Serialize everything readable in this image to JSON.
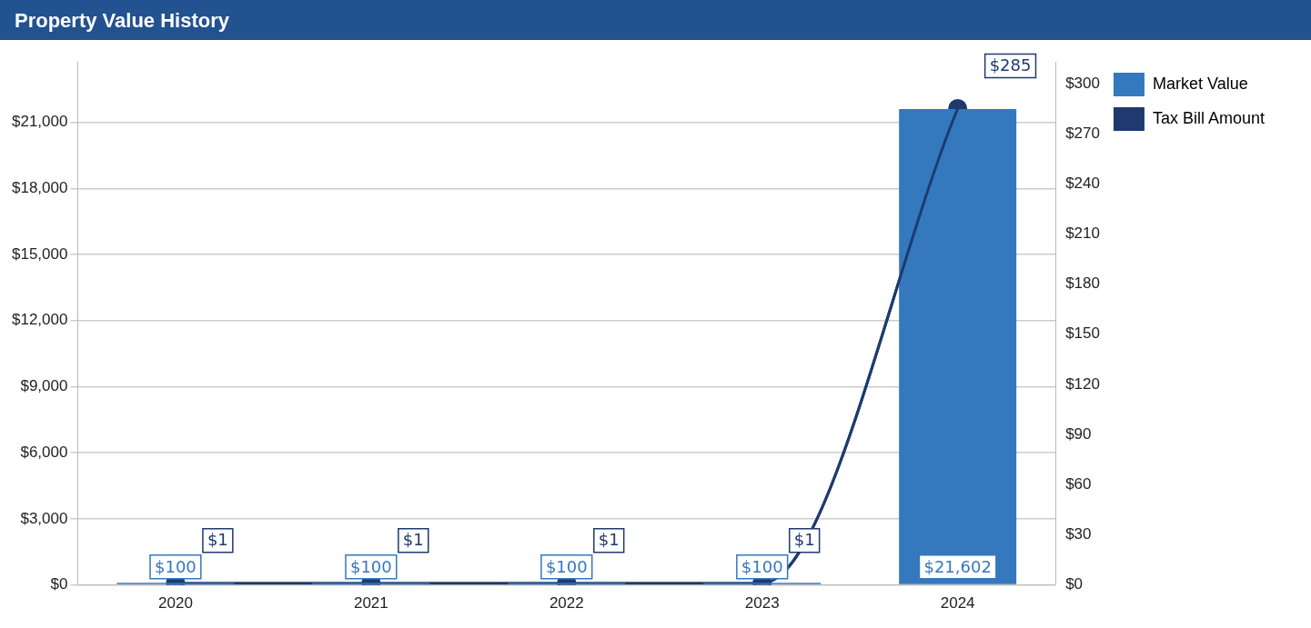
{
  "chart_data": {
    "type": "bar",
    "title": "Property Value History",
    "categories": [
      "2020",
      "2021",
      "2022",
      "2023",
      "2024"
    ],
    "series": [
      {
        "name": "Market Value",
        "type": "bar",
        "color": "#3478be",
        "values": [
          100,
          100,
          100,
          100,
          21602
        ],
        "value_labels": [
          "$100",
          "$100",
          "$100",
          "$100",
          "$21,602"
        ]
      },
      {
        "name": "Tax Bill Amount",
        "type": "line",
        "axis": "y2",
        "color": "#1f3a6e",
        "values": [
          1,
          1,
          1,
          1,
          285
        ],
        "value_labels": [
          "$1",
          "$1",
          "$1",
          "$1",
          "$285"
        ]
      }
    ],
    "ylim": [
      0,
      23750
    ],
    "yticks": [
      {
        "value": 0,
        "label": "$0"
      },
      {
        "value": 3000,
        "label": "$3,000"
      },
      {
        "value": 6000,
        "label": "$6,000"
      },
      {
        "value": 9000,
        "label": "$9,000"
      },
      {
        "value": 12000,
        "label": "$12,000"
      },
      {
        "value": 15000,
        "label": "$15,000"
      },
      {
        "value": 18000,
        "label": "$18,000"
      },
      {
        "value": 21000,
        "label": "$21,000"
      }
    ],
    "y2lim": [
      0,
      313
    ],
    "y2ticks": [
      {
        "value": 0,
        "label": "$0"
      },
      {
        "value": 30,
        "label": "$30"
      },
      {
        "value": 60,
        "label": "$60"
      },
      {
        "value": 90,
        "label": "$90"
      },
      {
        "value": 120,
        "label": "$120"
      },
      {
        "value": 150,
        "label": "$150"
      },
      {
        "value": 180,
        "label": "$180"
      },
      {
        "value": 210,
        "label": "$210"
      },
      {
        "value": 240,
        "label": "$240"
      },
      {
        "value": 270,
        "label": "$270"
      },
      {
        "value": 300,
        "label": "$300"
      }
    ],
    "grid": "y",
    "legend": "top right",
    "marker": "circle",
    "line_style": "solid"
  }
}
